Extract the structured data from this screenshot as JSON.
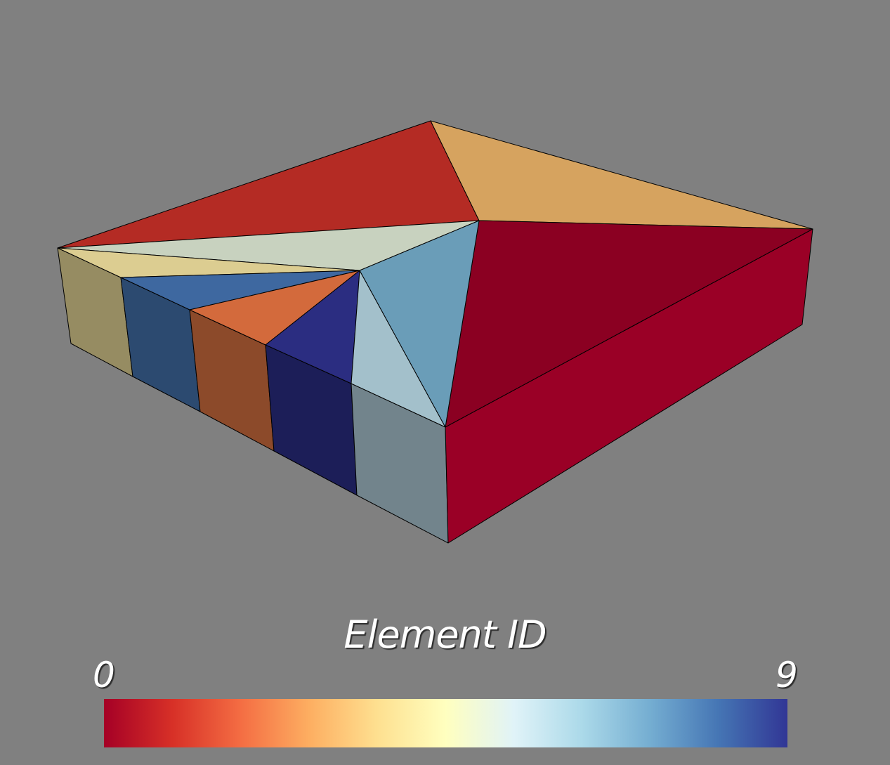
{
  "viewport": {
    "background_color": "#808080",
    "edge_color": "#000000"
  },
  "legend": {
    "title": "Element ID",
    "min_label": "0",
    "max_label": "9",
    "colormap": [
      "#a50026",
      "#d73027",
      "#f46d43",
      "#fdae61",
      "#fee090",
      "#ffffbf",
      "#e0f3f8",
      "#abd9e9",
      "#74add1",
      "#4575b4",
      "#313695"
    ]
  },
  "mesh": {
    "face_colors": {
      "top_back_left": "#b42b24",
      "top_back_right": "#d6a35f",
      "top_right_large": "#8b0022",
      "top_sliver_light": "#c8d2bf",
      "top_sliver_tan": "#dccd91",
      "top_blue": "#3e68a0",
      "top_orange": "#d36a3c",
      "top_navy": "#2b2d81",
      "top_light_blue": "#a3c0cb",
      "top_mid_blue": "#6a9db8",
      "side_tan": "#968c62",
      "side_blue": "#2c4a70",
      "side_orange": "#8c4a2a",
      "side_navy": "#1c1e58",
      "side_gray_blue": "#72848c",
      "side_right_red": "#9a0026"
    }
  }
}
